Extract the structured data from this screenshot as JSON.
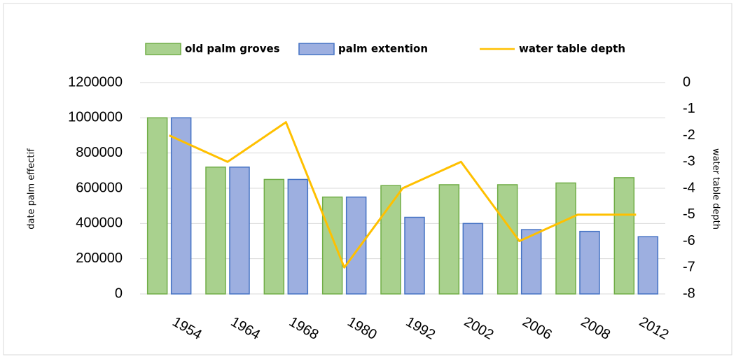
{
  "chart_data": {
    "type": "bar",
    "categories": [
      "1954",
      "1964",
      "1968",
      "1980",
      "1992",
      "2002",
      "2006",
      "2008",
      "2012"
    ],
    "series": [
      {
        "name": "old palm groves",
        "type": "bar",
        "color": "#a9d18e",
        "stroke": "#70ad47",
        "values": [
          1000000,
          720000,
          650000,
          550000,
          615000,
          620000,
          620000,
          630000,
          660000
        ]
      },
      {
        "name": "palm extention",
        "type": "bar",
        "color": "#9dafe0",
        "stroke": "#4472c4",
        "values": [
          1000000,
          720000,
          650000,
          550000,
          435000,
          400000,
          365000,
          355000,
          325000
        ]
      },
      {
        "name": "water table depth",
        "type": "line",
        "axis": "y2",
        "color": "#ffc000",
        "values": [
          -2,
          -3,
          -1.5,
          -7,
          -4,
          -3,
          -6,
          -5,
          -5
        ]
      }
    ],
    "y_label": "date palm effectif",
    "y2_label": "water table depth",
    "ylim": [
      0,
      1200000
    ],
    "yticks": [
      0,
      200000,
      400000,
      600000,
      800000,
      1000000,
      1200000
    ],
    "y2lim": [
      -8,
      0
    ],
    "y2ticks": [
      -8,
      -7,
      -6,
      -5,
      -4,
      -3,
      -2,
      -1,
      0
    ],
    "grid": true
  }
}
